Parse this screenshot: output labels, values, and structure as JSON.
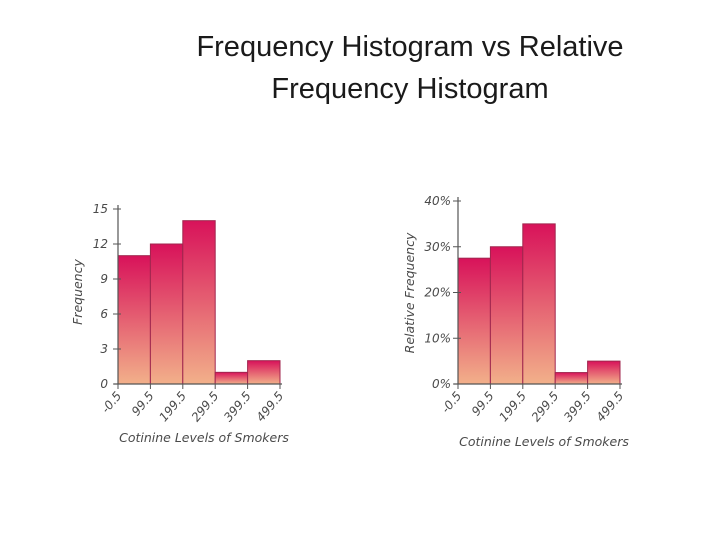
{
  "slide": {
    "title_line1": "Frequency Histogram vs Relative",
    "title_line2": "Frequency Histogram"
  },
  "colors": {
    "bar_top": "#d8125a",
    "bar_bottom": "#f2b08a",
    "axis": "#555555",
    "label": "#4a4a4a"
  },
  "chart_data": [
    {
      "type": "bar",
      "title": "",
      "xlabel": "Cotinine Levels of Smokers",
      "ylabel": "Frequency",
      "bin_edges": [
        "-0.5",
        "99.5",
        "199.5",
        "299.5",
        "399.5",
        "499.5"
      ],
      "categories": [
        "-0.5–99.5",
        "99.5–199.5",
        "199.5–299.5",
        "299.5–399.5",
        "399.5–499.5"
      ],
      "values": [
        11,
        12,
        14,
        1,
        2
      ],
      "ylim": [
        0,
        15
      ],
      "yticks": [
        "0",
        "3",
        "6",
        "9",
        "12",
        "15"
      ],
      "ytick_values": [
        0,
        3,
        6,
        9,
        12,
        15
      ],
      "grid": false
    },
    {
      "type": "bar",
      "title": "",
      "xlabel": "Cotinine Levels of Smokers",
      "ylabel": "Relative Frequency",
      "bin_edges": [
        "-0.5",
        "99.5",
        "199.5",
        "299.5",
        "399.5",
        "499.5"
      ],
      "categories": [
        "-0.5–99.5",
        "99.5–199.5",
        "199.5–299.5",
        "299.5–399.5",
        "399.5–499.5"
      ],
      "values": [
        27.5,
        30,
        35,
        2.5,
        5
      ],
      "ylim": [
        0,
        40
      ],
      "yticks": [
        "0%",
        "10%",
        "20%",
        "30%",
        "40%"
      ],
      "ytick_values": [
        0,
        10,
        20,
        30,
        40
      ],
      "grid": false
    }
  ]
}
